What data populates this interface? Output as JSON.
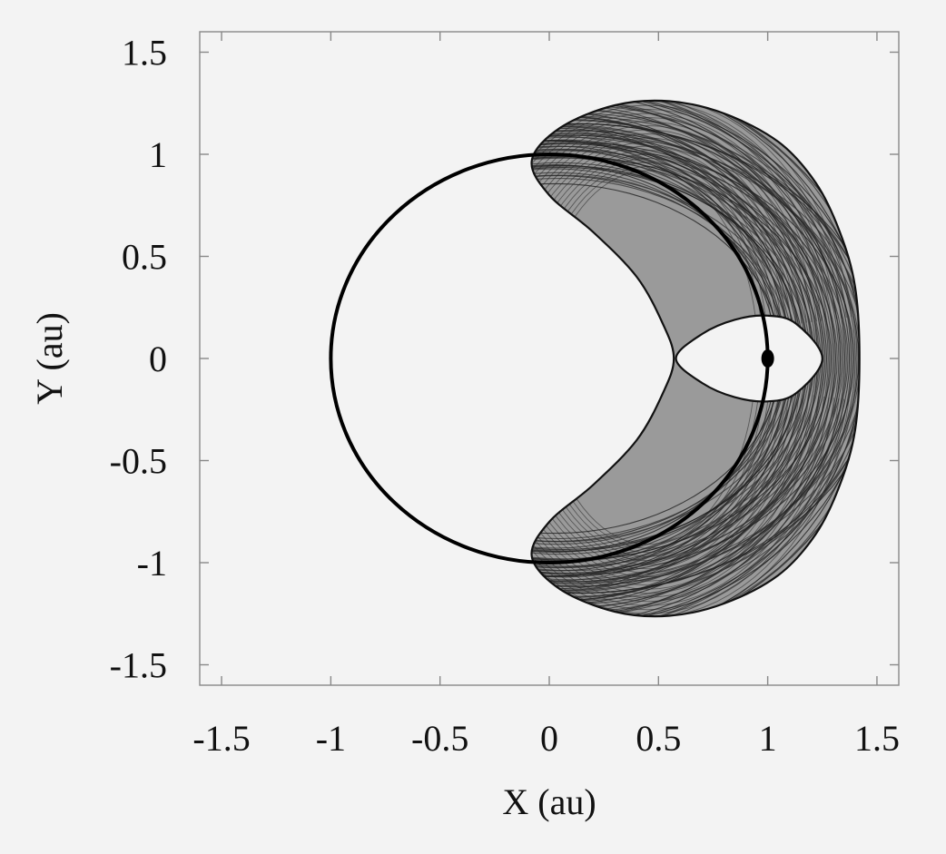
{
  "chart_data": {
    "type": "line",
    "title": "",
    "xlabel": "X (au)",
    "ylabel": "Y (au)",
    "xlim": [
      -1.6,
      1.6
    ],
    "ylim": [
      -1.6,
      1.6
    ],
    "xticks": [
      -1.5,
      -1,
      -0.5,
      0,
      0.5,
      1,
      1.5
    ],
    "yticks": [
      -1.5,
      -1,
      -0.5,
      0,
      0.5,
      1,
      1.5
    ],
    "xtick_labels": [
      "-1.5",
      "-1",
      "-0.5",
      "0",
      "0.5",
      "1",
      "1.5"
    ],
    "ytick_labels": [
      "-1.5",
      "-1",
      "-0.5",
      "0",
      "0.5",
      "1",
      "1.5"
    ],
    "grid": false,
    "legend": "none",
    "series": [
      {
        "kind": "circle",
        "center": [
          0,
          0
        ],
        "radius": 1.0
      },
      {
        "kind": "point",
        "x": 1.0,
        "y": 0.0
      },
      {
        "kind": "horseshoe-band",
        "outer_boundary": [
          [
            1.42,
            0.0
          ],
          [
            1.4,
            0.35
          ],
          [
            1.33,
            0.62
          ],
          [
            1.22,
            0.86
          ],
          [
            1.05,
            1.06
          ],
          [
            0.8,
            1.2
          ],
          [
            0.55,
            1.26
          ],
          [
            0.3,
            1.24
          ],
          [
            0.05,
            1.13
          ],
          [
            -0.08,
            0.97
          ],
          [
            0.0,
            0.8
          ],
          [
            0.2,
            0.62
          ],
          [
            0.4,
            0.4
          ],
          [
            0.52,
            0.17
          ],
          [
            0.57,
            0.0
          ],
          [
            0.52,
            -0.17
          ],
          [
            0.4,
            -0.4
          ],
          [
            0.2,
            -0.62
          ],
          [
            0.0,
            -0.8
          ],
          [
            -0.08,
            -0.97
          ],
          [
            0.05,
            -1.13
          ],
          [
            0.3,
            -1.24
          ],
          [
            0.55,
            -1.26
          ],
          [
            0.8,
            -1.2
          ],
          [
            1.05,
            -1.06
          ],
          [
            1.22,
            -0.86
          ],
          [
            1.33,
            -0.62
          ],
          [
            1.4,
            -0.35
          ],
          [
            1.42,
            0.0
          ]
        ],
        "inner_gap": [
          [
            0.58,
            0.0
          ],
          [
            0.7,
            0.12
          ],
          [
            0.85,
            0.19
          ],
          [
            1.0,
            0.21
          ],
          [
            1.13,
            0.17
          ],
          [
            1.25,
            0.0
          ],
          [
            1.13,
            -0.17
          ],
          [
            1.0,
            -0.21
          ],
          [
            0.85,
            -0.19
          ],
          [
            0.7,
            -0.12
          ],
          [
            0.58,
            0.0
          ]
        ]
      }
    ]
  }
}
